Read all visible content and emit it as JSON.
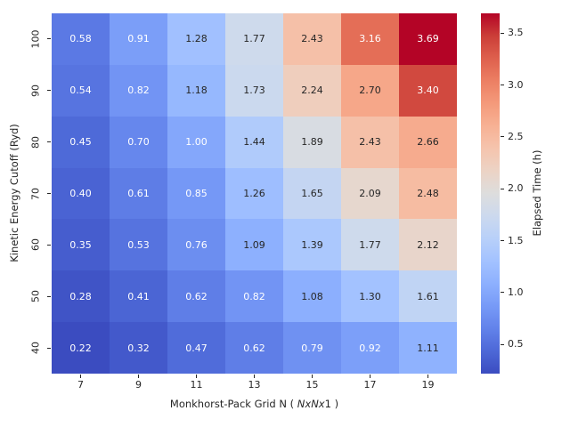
{
  "chart_data": {
    "type": "heatmap",
    "title": "",
    "xlabel": "Monkhorst-Pack Grid N ( NxNx1 )",
    "xlabel_parts": [
      {
        "text": "Monkhorst-Pack Grid N ( ",
        "italic": false
      },
      {
        "text": "NxNx",
        "italic": true
      },
      {
        "text": "1 )",
        "italic": false
      }
    ],
    "ylabel": "Kinetic Energy Cutoff (Ryd)",
    "colorbar_label": "Elapsed Time (h)",
    "x_tick_labels": [
      "7",
      "9",
      "11",
      "13",
      "15",
      "17",
      "19"
    ],
    "y_tick_labels": [
      "100",
      "90",
      "80",
      "70",
      "60",
      "50",
      "40"
    ],
    "values": [
      [
        0.58,
        0.91,
        1.28,
        1.77,
        2.43,
        3.16,
        3.69
      ],
      [
        0.54,
        0.82,
        1.18,
        1.73,
        2.24,
        2.7,
        3.4
      ],
      [
        0.45,
        0.7,
        1.0,
        1.44,
        1.89,
        2.43,
        2.66
      ],
      [
        0.4,
        0.61,
        0.85,
        1.26,
        1.65,
        2.09,
        2.48
      ],
      [
        0.35,
        0.53,
        0.76,
        1.09,
        1.39,
        1.77,
        2.12
      ],
      [
        0.28,
        0.41,
        0.62,
        0.82,
        1.08,
        1.3,
        1.61
      ],
      [
        0.22,
        0.32,
        0.47,
        0.62,
        0.79,
        0.92,
        1.11
      ]
    ],
    "value_format_decimals": 2,
    "vmin": 0.22,
    "vmax": 3.69,
    "colorbar_tick_values": [
      0.5,
      1.0,
      1.5,
      2.0,
      2.5,
      3.0,
      3.5
    ],
    "colorbar_tick_labels": [
      "0.5",
      "1.0",
      "1.5",
      "2.0",
      "2.5",
      "3.0",
      "3.5"
    ],
    "colormap": {
      "name": "coolwarm",
      "stops": [
        "#3b4cc0",
        "#4d68d7",
        "#6282ea",
        "#779af7",
        "#8db0fe",
        "#a3c2ff",
        "#b8d0f9",
        "#ccd9ee",
        "#dddddd",
        "#ecd3c5",
        "#f5c4ad",
        "#f7b194",
        "#f49a7b",
        "#ec7f63",
        "#de604d",
        "#cb3e38",
        "#b40426"
      ]
    },
    "annotation_text_colors": {
      "dark": "#262626",
      "light": "#ffffff"
    },
    "grid": false,
    "legend_position": "right-colorbar"
  }
}
